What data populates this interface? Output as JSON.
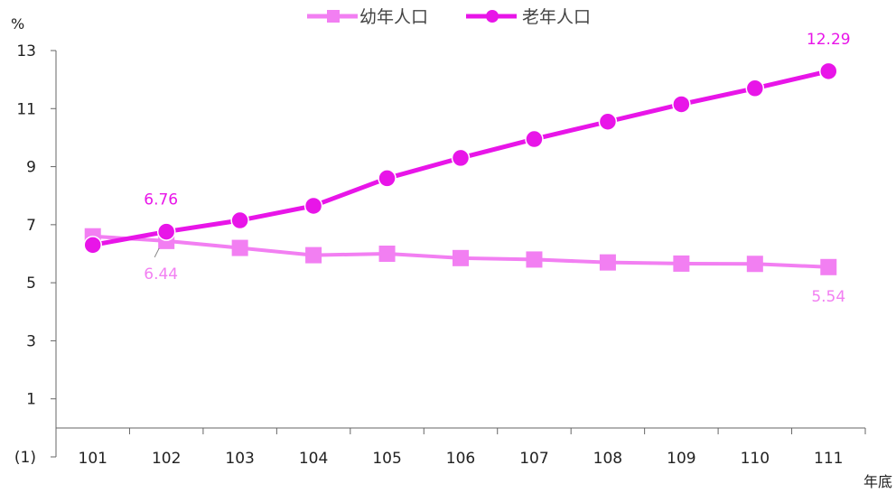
{
  "chart_data": {
    "type": "line",
    "ylabel": "%",
    "xlabel": "年底",
    "categories": [
      "101",
      "102",
      "103",
      "104",
      "105",
      "106",
      "107",
      "108",
      "109",
      "110",
      "111"
    ],
    "ylim": [
      -1,
      13
    ],
    "yticks": [
      "(1)",
      "1",
      "3",
      "5",
      "7",
      "9",
      "11",
      "13"
    ],
    "ytick_values": [
      -1,
      1,
      3,
      5,
      7,
      9,
      11,
      13
    ],
    "legend_position": "top",
    "series": [
      {
        "name": "幼年人口",
        "color": "#F27FF2",
        "marker": "square",
        "values": [
          6.6,
          6.44,
          6.2,
          5.95,
          6.0,
          5.85,
          5.8,
          5.7,
          5.66,
          5.65,
          5.54
        ]
      },
      {
        "name": "老年人口",
        "color": "#E815E8",
        "marker": "circle",
        "values": [
          6.3,
          6.76,
          7.15,
          7.65,
          8.6,
          9.3,
          9.95,
          10.55,
          11.15,
          11.7,
          12.29
        ]
      }
    ],
    "data_labels": [
      {
        "series": 1,
        "index": 1,
        "text": "6.76",
        "color": "#E815E8"
      },
      {
        "series": 0,
        "index": 1,
        "text": "6.44",
        "color": "#F27FF2"
      },
      {
        "series": 1,
        "index": 10,
        "text": "12.29",
        "color": "#E815E8"
      },
      {
        "series": 0,
        "index": 10,
        "text": "5.54",
        "color": "#F27FF2"
      }
    ],
    "negative_tick_color": "#E00000",
    "axis_color": "#666666"
  }
}
